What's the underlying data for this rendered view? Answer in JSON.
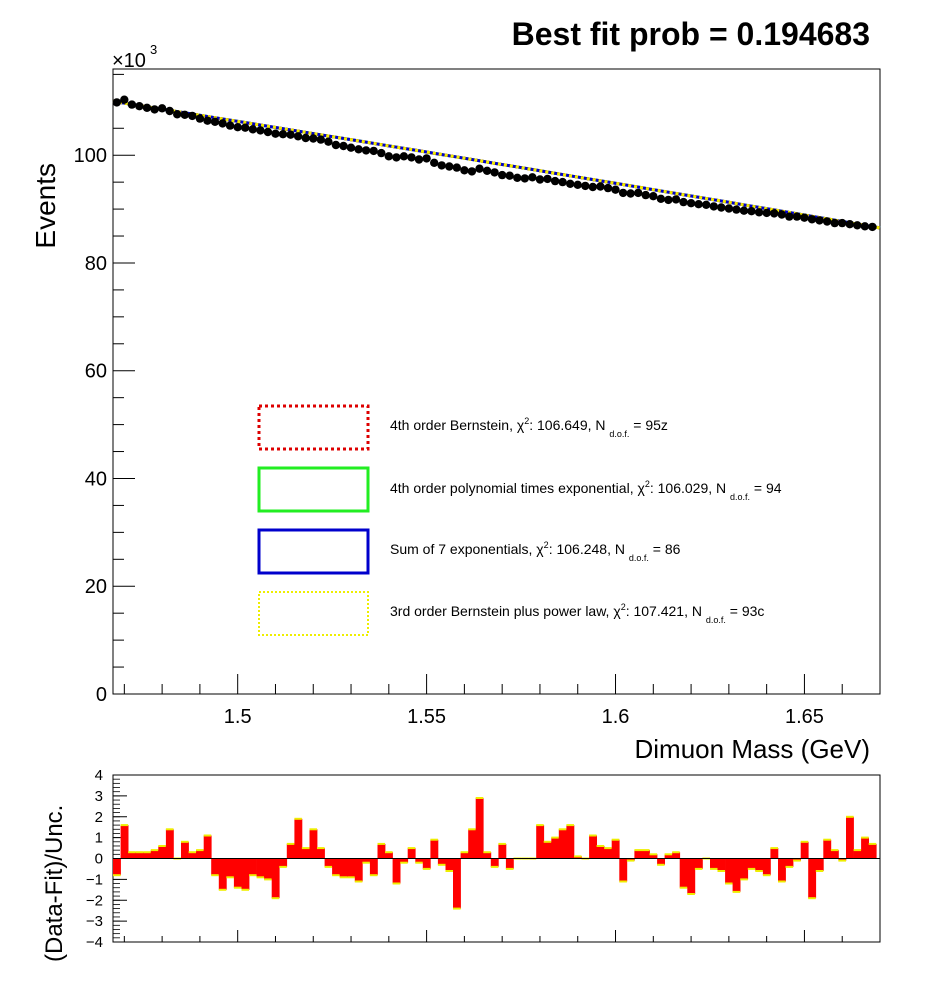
{
  "header": {
    "title": "Best fit prob = 0.194683"
  },
  "colors": {
    "bernstein4": "#dd0000",
    "polyexp4": "#22ee22",
    "sumexp7": "#0000cc",
    "bernstein3_power": "#eeee00",
    "data_points": "#000000",
    "residual_fill": "#ff0000"
  },
  "chart_data": [
    {
      "type": "scatter",
      "title": "Best fit prob = 0.194683",
      "xlabel": "Dimuon Mass (GeV)",
      "ylabel": "Events",
      "y_exponent_label": "×10³",
      "y_multiplier_text": "3",
      "xlim": [
        1.467,
        1.67
      ],
      "ylim": [
        0,
        116
      ],
      "y_unit": "thousands of events",
      "x_ticks": [
        1.5,
        1.55,
        1.6,
        1.65
      ],
      "x_tick_labels": [
        "1.5",
        "1.55",
        "1.6",
        "1.65"
      ],
      "y_ticks": [
        0,
        20,
        40,
        60,
        80,
        100
      ],
      "y_tick_labels": [
        "0",
        "20",
        "40",
        "60",
        "80",
        "100"
      ],
      "grid": false,
      "legend_position": "lower-center",
      "data_points": {
        "x": [
          1.468,
          1.47,
          1.472,
          1.474,
          1.476,
          1.478,
          1.48,
          1.482,
          1.484,
          1.486,
          1.488,
          1.49,
          1.492,
          1.494,
          1.496,
          1.498,
          1.5,
          1.502,
          1.504,
          1.506,
          1.508,
          1.51,
          1.512,
          1.514,
          1.516,
          1.518,
          1.52,
          1.522,
          1.524,
          1.526,
          1.528,
          1.53,
          1.532,
          1.534,
          1.536,
          1.538,
          1.54,
          1.542,
          1.544,
          1.546,
          1.548,
          1.55,
          1.552,
          1.554,
          1.556,
          1.558,
          1.56,
          1.562,
          1.564,
          1.566,
          1.568,
          1.57,
          1.572,
          1.574,
          1.576,
          1.578,
          1.58,
          1.582,
          1.584,
          1.586,
          1.588,
          1.59,
          1.592,
          1.594,
          1.596,
          1.598,
          1.6,
          1.602,
          1.604,
          1.606,
          1.608,
          1.61,
          1.612,
          1.614,
          1.616,
          1.618,
          1.62,
          1.622,
          1.624,
          1.626,
          1.628,
          1.63,
          1.632,
          1.634,
          1.636,
          1.638,
          1.64,
          1.642,
          1.644,
          1.646,
          1.648,
          1.65,
          1.652,
          1.654,
          1.656,
          1.658,
          1.66,
          1.662,
          1.664,
          1.666,
          1.668
        ],
        "y": [
          109.8,
          110.3,
          109.4,
          109.1,
          108.8,
          108.5,
          108.7,
          108.2,
          107.6,
          107.5,
          107.3,
          106.8,
          106.4,
          106.2,
          105.9,
          105.5,
          105.2,
          105.1,
          104.8,
          104.6,
          104.3,
          104.0,
          103.9,
          103.8,
          103.5,
          103.2,
          103.1,
          102.9,
          102.5,
          101.9,
          101.7,
          101.4,
          101.1,
          100.9,
          100.8,
          100.4,
          99.8,
          99.6,
          99.8,
          99.6,
          99.2,
          99.4,
          98.6,
          98.1,
          97.9,
          97.7,
          97.2,
          97.0,
          97.5,
          97.1,
          96.8,
          96.3,
          96.2,
          95.8,
          95.7,
          95.9,
          95.5,
          95.6,
          95.2,
          95.0,
          94.7,
          94.5,
          94.3,
          94.1,
          94.2,
          93.9,
          93.6,
          93.0,
          92.9,
          93.0,
          92.6,
          92.4,
          91.9,
          91.7,
          91.8,
          91.3,
          91.1,
          90.9,
          90.8,
          90.5,
          90.3,
          90.1,
          89.9,
          89.7,
          89.6,
          89.4,
          89.3,
          89.2,
          89.0,
          88.6,
          88.6,
          88.4,
          88.1,
          87.9,
          87.7,
          87.4,
          87.4,
          87.2,
          87.0,
          86.8,
          86.7
        ]
      },
      "fit_curves": [
        {
          "name": "4th order Bernstein, χ²: 106.649, N d.o.f. = 95z",
          "label_main": "4th order Bernstein,   χ",
          "chi2_text": ": 106.649, N ",
          "ndof_text": " = 95z",
          "color": "#dd0000",
          "line_style": "dotted",
          "y_start": 110.0,
          "y_end": 86.5
        },
        {
          "name": "4th order polynomial times exponential, χ²: 106.029, N d.o.f. = 94",
          "label_main": "4th order polynomial times exponential,     χ",
          "chi2_text": ": 106.029, N ",
          "ndof_text": " = 94",
          "color": "#22ee22",
          "line_style": "solid",
          "y_start": 110.0,
          "y_end": 86.5
        },
        {
          "name": "Sum of 7 exponentials, χ²: 106.248, N d.o.f. = 86",
          "label_main": "Sum of 7 exponentials,   χ",
          "chi2_text": ": 106.248, N ",
          "ndof_text": " = 86",
          "color": "#0000cc",
          "line_style": "solid",
          "y_start": 110.0,
          "y_end": 86.5
        },
        {
          "name": "3rd order Bernstein plus power law, χ²: 107.421, N d.o.f. = 93c",
          "label_main": "3rd order Bernstein plus power law,     χ",
          "chi2_text": ": 107.421, N ",
          "ndof_text": " = 93c",
          "color": "#eeee00",
          "line_style": "dotted",
          "y_start": 110.0,
          "y_end": 86.5
        }
      ]
    },
    {
      "type": "bar",
      "ylabel": "(Data-Fit)/Unc.",
      "xlim": [
        1.467,
        1.67
      ],
      "ylim": [
        -4,
        4
      ],
      "y_ticks": [
        -4,
        -3,
        -2,
        -1,
        0,
        1,
        2,
        3,
        4
      ],
      "y_tick_labels": [
        "−4",
        "−3",
        "−2",
        "−1",
        "0",
        "1",
        "2",
        "3",
        "4"
      ],
      "bin_width": 0.002,
      "values": [
        -0.8,
        1.6,
        0.3,
        0.3,
        0.3,
        0.4,
        0.6,
        1.4,
        0.0,
        0.8,
        0.3,
        0.4,
        1.1,
        -0.8,
        -1.5,
        -0.9,
        -1.4,
        -1.5,
        -0.8,
        -0.9,
        -1.0,
        -1.9,
        -0.4,
        0.7,
        1.9,
        0.5,
        1.4,
        0.5,
        -0.4,
        -0.8,
        -0.9,
        -0.9,
        -1.1,
        -0.2,
        -0.8,
        0.7,
        0.3,
        -1.2,
        -0.2,
        0.5,
        -0.2,
        -0.5,
        0.9,
        -0.3,
        -0.6,
        -2.4,
        0.3,
        1.4,
        2.9,
        0.3,
        -0.4,
        0.7,
        -0.5,
        0.0,
        0.0,
        0.0,
        1.6,
        0.8,
        1.0,
        1.4,
        1.6,
        0.1,
        0.0,
        1.1,
        0.6,
        0.5,
        0.9,
        -1.1,
        -0.1,
        0.4,
        0.4,
        0.2,
        -0.3,
        0.2,
        0.3,
        -1.4,
        -1.7,
        -0.5,
        0.0,
        -0.5,
        -0.6,
        -1.2,
        -1.6,
        -1.0,
        -0.5,
        -0.6,
        -0.8,
        0.5,
        -1.1,
        -0.4,
        -0.1,
        0.8,
        -1.9,
        -0.6,
        0.9,
        0.4,
        -0.1,
        2.0,
        0.4,
        1.0,
        0.7
      ]
    }
  ]
}
